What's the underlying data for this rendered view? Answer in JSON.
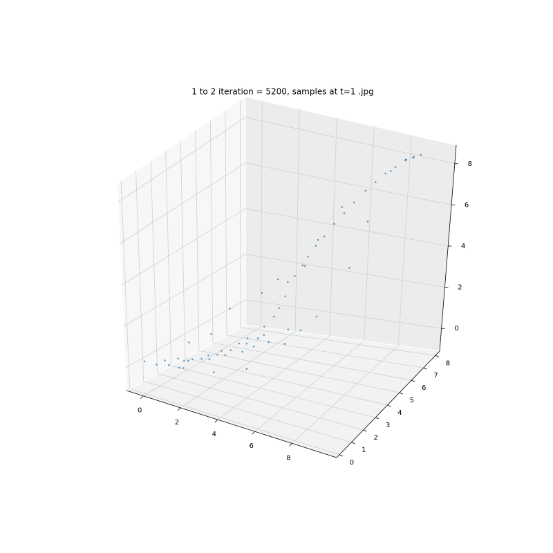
{
  "chart_data": {
    "type": "scatter3d",
    "title": "1 to 2 iteration = 5200, samples at t=1 .jpg",
    "color": "#1f77b4",
    "xlim": [
      -0.9,
      10.4
    ],
    "ylim": [
      -0.23,
      8.35
    ],
    "zlim": [
      -1.1,
      8.9
    ],
    "xticks": [
      0,
      2,
      4,
      6,
      8
    ],
    "yticks": [
      0,
      1,
      2,
      3,
      4,
      5,
      6,
      7,
      8
    ],
    "zticks": [
      0,
      2,
      4,
      6,
      8
    ],
    "grid": true,
    "x": [
      -0.5,
      0,
      0.3,
      0.6,
      0.8,
      1.0,
      1.2,
      1.5,
      1.7,
      2.0,
      2.2,
      2.5,
      2.7,
      3.0,
      3.2,
      3.4,
      3.6,
      3.8,
      4.0,
      4.1,
      4.3,
      4.5,
      4.4,
      4.7,
      4.9,
      5.1,
      5.3,
      5.6,
      5.9,
      6.2,
      6.5,
      6.8,
      7.1,
      7.4,
      7.7,
      8.0,
      8.3,
      8.6,
      1.5,
      2.8,
      3.5,
      5.0,
      6.0,
      6.5,
      2.0,
      4.0,
      0.5,
      7.0,
      3.0,
      5.5,
      1.9,
      2.4,
      3.3,
      3.9,
      2.9,
      0.9,
      1.3,
      4.6,
      4.8,
      5.2,
      6.0,
      7.6,
      8.1,
      7.9,
      8.4
    ],
    "y": [
      0.6,
      0.8,
      1.0,
      0.9,
      1.3,
      1.1,
      1.5,
      1.4,
      1.8,
      1.9,
      2.3,
      2.2,
      2.6,
      2.8,
      3.1,
      2.9,
      3.4,
      3.6,
      3.3,
      3.9,
      4.0,
      4.2,
      4.5,
      4.6,
      4.9,
      5.0,
      5.3,
      5.5,
      5.8,
      6.1,
      6.4,
      6.8,
      7.1,
      7.4,
      7.7,
      8.0,
      8.2,
      8.3,
      2.8,
      1.2,
      5.0,
      3.5,
      4.5,
      7.5,
      3.5,
      2.0,
      2.5,
      5.5,
      4.5,
      4.0,
      2.1,
      2.6,
      3.5,
      3.8,
      3.2,
      1.6,
      1.0,
      4.3,
      5.2,
      5.6,
      6.2,
      7.5,
      7.9,
      8.2,
      8.0
    ],
    "z": [
      0.1,
      0.0,
      0.2,
      0.1,
      0.3,
      0.0,
      0.2,
      0.4,
      0.3,
      0.5,
      0.4,
      0.7,
      0.6,
      0.9,
      0.8,
      1.2,
      1.0,
      1.5,
      1.3,
      1.9,
      2.3,
      2.8,
      3.3,
      3.6,
      4.0,
      4.4,
      4.8,
      5.2,
      5.7,
      6.1,
      6.5,
      6.9,
      7.2,
      7.5,
      7.7,
      7.9,
      8.0,
      8.1,
      1.0,
      0.2,
      3.0,
      1.0,
      2.0,
      5.0,
      2.0,
      0.3,
      0.5,
      4.0,
      2.5,
      1.5,
      0.2,
      0.3,
      0.5,
      0.7,
      0.3,
      0.1,
      0.1,
      1.2,
      3.8,
      4.9,
      6.3,
      7.6,
      8.0,
      7.8,
      8.1
    ]
  }
}
